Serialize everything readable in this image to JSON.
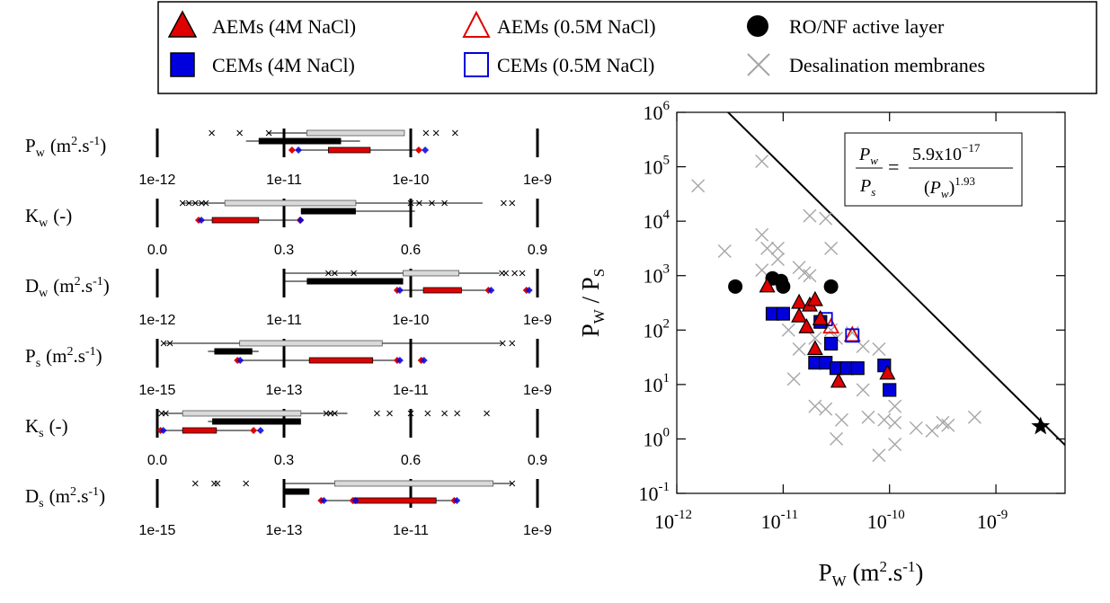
{
  "legend": {
    "items": [
      {
        "label": "AEMs (4M NaCl)",
        "marker": "triangle-filled"
      },
      {
        "label": "AEMs (0.5M NaCl)",
        "marker": "triangle-open"
      },
      {
        "label": "RO/NF active layer",
        "marker": "circle-filled"
      },
      {
        "label": "CEMs (4M NaCl)",
        "marker": "square-filled"
      },
      {
        "label": "CEMs (0.5M NaCl)",
        "marker": "square-open"
      },
      {
        "label": "Desalination membranes",
        "marker": "cross"
      }
    ]
  },
  "colors": {
    "aem": "#e00000",
    "cem": "#0000dd",
    "desal": "#a6a6a6",
    "ro": "#000000",
    "box_grey": "#d9d9d9",
    "box_black": "#000000",
    "box_red": "#e00000"
  },
  "chart_data": [
    {
      "type": "boxplot",
      "rows": [
        {
          "label": "Pw (m2.s-1)",
          "sym": "P",
          "sub": "w",
          "unit_pre": "(m",
          "unit_sup1": "2",
          "unit_mid": ".s",
          "unit_sup2": "-1",
          "unit_post": ")",
          "scale": "log",
          "ticks": [
            "1e-12",
            "1e-11",
            "1e-10",
            "1e-9"
          ],
          "range": [
            -12,
            -9
          ],
          "desal_box": {
            "whisker": [
              -11.13,
              -10.2
            ],
            "box": [
              -10.82,
              -10.05
            ]
          },
          "desal_outliers": [
            -11.57,
            -11.35,
            -11.12,
            -9.88,
            -9.8,
            -9.65
          ],
          "ro_box": {
            "whisker": [
              -11.3,
              -10.4
            ],
            "box": [
              -11.2,
              -10.55
            ]
          },
          "ro_end": [
            -11.06
          ],
          "mem_box": {
            "whisker": [
              -10.93,
              -9.93
            ],
            "box": [
              -10.65,
              -10.32
            ]
          },
          "aem_dots": [
            -10.93,
            -9.93
          ],
          "cem_dots": [
            -10.9,
            -9.9
          ]
        },
        {
          "label": "Kw (-)",
          "sym": "K",
          "sub": "w",
          "unit_pre": "(-)",
          "unit_sup1": "",
          "unit_mid": "",
          "unit_sup2": "",
          "unit_post": "",
          "scale": "linear",
          "ticks": [
            "0.0",
            "0.3",
            "0.6",
            "0.9"
          ],
          "range": [
            0,
            0.9
          ],
          "desal_box": {
            "whisker": [
              0.06,
              0.77
            ],
            "box": [
              0.16,
              0.47
            ]
          },
          "desal_outliers": [
            0.06,
            0.075,
            0.09,
            0.105,
            0.115,
            0.6,
            0.62,
            0.65,
            0.68,
            0.82,
            0.84
          ],
          "ro_box": {
            "whisker": [
              0.34,
              0.61
            ],
            "box": [
              0.34,
              0.47
            ]
          },
          "ro_end": [],
          "mem_box": {
            "whisker": [
              0.1,
              0.34
            ],
            "box": [
              0.13,
              0.24
            ]
          },
          "aem_dots": [
            0.1,
            0.34
          ],
          "cem_dots": [
            0.1,
            0.335
          ]
        },
        {
          "label": "Dw (m2.s-1)",
          "sym": "D",
          "sub": "w",
          "unit_pre": "(m",
          "unit_sup1": "2",
          "unit_mid": ".s",
          "unit_sup2": "-1",
          "unit_post": ")",
          "scale": "log",
          "ticks": [
            "1e-12",
            "1e-11",
            "1e-10",
            "1e-9"
          ],
          "range": [
            -12,
            -9
          ],
          "desal_box": {
            "whisker": [
              -11,
              -9.3
            ],
            "box": [
              -10.06,
              -9.62
            ]
          },
          "desal_outliers": [
            -10.65,
            -10.6,
            -10.45,
            -9.28,
            -9.25,
            -9.18,
            -9.12
          ],
          "ro_box": {
            "whisker": [
              -11,
              -10.06
            ],
            "box": [
              -10.82,
              -10.06
            ]
          },
          "ro_end": [],
          "mem_box": {
            "whisker": [
              -10.1,
              -9.38
            ],
            "box": [
              -9.9,
              -9.6
            ]
          },
          "aem_dots": [
            -10.1,
            -9.38,
            -9.08
          ],
          "cem_dots": [
            -10.1,
            -9.38,
            -9.08
          ]
        },
        {
          "label": "Ps (m2.s-1)",
          "sym": "P",
          "sub": "s",
          "unit_pre": "(m",
          "unit_sup1": "2",
          "unit_mid": ".s",
          "unit_sup2": "-1",
          "unit_post": ")",
          "scale": "log",
          "ticks": [
            "1e-15",
            "1e-13",
            "1e-11",
            "1e-9"
          ],
          "range": [
            -15,
            -9
          ],
          "desal_box": {
            "whisker": [
              -14.9,
              -9.55
            ],
            "box": [
              -13.7,
              -11.45
            ]
          },
          "desal_outliers": [
            -14.9,
            -14.8,
            -9.55,
            -9.4
          ],
          "ro_box": {
            "whisker": [
              -14.2,
              -13.4
            ],
            "box": [
              -14.1,
              -13.5
            ]
          },
          "ro_end": [],
          "mem_box": {
            "whisker": [
              -13.72,
              -11.2
            ],
            "box": [
              -12.6,
              -11.6
            ]
          },
          "aem_dots": [
            -13.72,
            -11.2,
            -10.82
          ],
          "cem_dots": [
            -13.72,
            -11.2,
            -10.82
          ]
        },
        {
          "label": "Ks (-)",
          "sym": "K",
          "sub": "s",
          "unit_pre": "(-)",
          "unit_sup1": "",
          "unit_mid": "",
          "unit_sup2": "",
          "unit_post": "",
          "scale": "linear",
          "ticks": [
            "0.0",
            "0.3",
            "0.6",
            "0.9"
          ],
          "range": [
            0,
            0.9
          ],
          "desal_box": {
            "whisker": [
              0.01,
              0.45
            ],
            "box": [
              0.06,
              0.34
            ]
          },
          "desal_outliers": [
            0.01,
            0.02,
            0.4,
            0.41,
            0.42,
            0.52,
            0.55,
            0.6,
            0.64,
            0.68,
            0.71,
            0.78
          ],
          "ro_box": {
            "whisker": [
              0.12,
              0.34
            ],
            "box": [
              0.13,
              0.34
            ]
          },
          "ro_end": [],
          "mem_box": {
            "whisker": [
              0.01,
              0.24
            ],
            "box": [
              0.06,
              0.14
            ]
          },
          "aem_dots": [
            0.01,
            0.23
          ],
          "cem_dots": [
            0.01,
            0.24
          ]
        },
        {
          "label": "Ds (m2.s-1)",
          "sym": "D",
          "sub": "s",
          "unit_pre": "(m",
          "unit_sup1": "2",
          "unit_mid": ".s",
          "unit_sup2": "-1",
          "unit_post": ")",
          "scale": "log",
          "ticks": [
            "1e-15",
            "1e-13",
            "1e-11",
            "1e-9"
          ],
          "range": [
            -15,
            -9
          ],
          "desal_box": {
            "whisker": [
              -13,
              -9.4
            ],
            "box": [
              -12.2,
              -9.7
            ]
          },
          "desal_outliers": [
            -14.4,
            -14.1,
            -14.05,
            -13.6,
            -9.4
          ],
          "ro_box": {
            "whisker": [
              -13,
              -12.6
            ],
            "box": [
              -13,
              -12.6
            ]
          },
          "ro_end": [],
          "mem_box": {
            "whisker": [
              -12.4,
              -10.3
            ],
            "box": [
              -11.9,
              -10.6
            ]
          },
          "aem_dots": [
            -12.4,
            -11.9,
            -10.3
          ],
          "cem_dots": [
            -12.4,
            -11.9,
            -10.3
          ]
        }
      ]
    },
    {
      "type": "scatter",
      "xlabel": "Pw (m2.s-1)",
      "ylabel": "Pw / Ps",
      "x_scale": "log",
      "y_scale": "log",
      "xlim": [
        -12,
        -8.35
      ],
      "ylim": [
        -1,
        6
      ],
      "x_ticks": [
        {
          "val": -12,
          "base": "10",
          "exp": "-12"
        },
        {
          "val": -11,
          "base": "10",
          "exp": "-11"
        },
        {
          "val": -10,
          "base": "10",
          "exp": "-10"
        },
        {
          "val": -9,
          "base": "10",
          "exp": "-9"
        }
      ],
      "y_ticks": [
        {
          "val": -1,
          "base": "10",
          "exp": "-1"
        },
        {
          "val": 0,
          "base": "10",
          "exp": "0"
        },
        {
          "val": 1,
          "base": "10",
          "exp": "1"
        },
        {
          "val": 2,
          "base": "10",
          "exp": "2"
        },
        {
          "val": 3,
          "base": "10",
          "exp": "3"
        },
        {
          "val": 4,
          "base": "10",
          "exp": "4"
        },
        {
          "val": 5,
          "base": "10",
          "exp": "5"
        },
        {
          "val": 6,
          "base": "10",
          "exp": "6"
        }
      ],
      "upper_bound": {
        "prefactor": 5.9e-17,
        "exponent": 1.93,
        "equation_num": "5.9x10",
        "equation_num_exp": "−17",
        "equation_den_exp": "1.93"
      },
      "star": {
        "x": -8.58,
        "y": 0.23
      },
      "series": [
        {
          "name": "RO/NF active layer",
          "points": [
            [
              -11.45,
              2.8
            ],
            [
              -11.1,
              2.95
            ],
            [
              -11.02,
              2.9
            ],
            [
              -11.0,
              2.8
            ],
            [
              -10.55,
              2.8
            ]
          ]
        },
        {
          "name": "AEMs (4M NaCl)",
          "points": [
            [
              -11.15,
              2.8
            ],
            [
              -10.85,
              2.5
            ],
            [
              -10.75,
              2.45
            ],
            [
              -10.85,
              2.25
            ],
            [
              -10.7,
              2.55
            ],
            [
              -10.65,
              2.2
            ],
            [
              -10.78,
              2.05
            ],
            [
              -10.7,
              1.65
            ],
            [
              -10.48,
              1.05
            ],
            [
              -10.02,
              1.2
            ]
          ]
        },
        {
          "name": "AEMs (0.5M NaCl)",
          "points": [
            [
              -10.55,
              2.05
            ],
            [
              -10.35,
              1.9
            ]
          ]
        },
        {
          "name": "CEMs (4M NaCl)",
          "points": [
            [
              -11.1,
              2.3
            ],
            [
              -11.0,
              2.3
            ],
            [
              -10.65,
              2.15
            ],
            [
              -10.55,
              1.75
            ],
            [
              -10.7,
              1.4
            ],
            [
              -10.6,
              1.4
            ],
            [
              -10.5,
              1.3
            ],
            [
              -10.4,
              1.3
            ],
            [
              -10.3,
              1.3
            ],
            [
              -10.05,
              1.35
            ],
            [
              -10.0,
              0.9
            ]
          ]
        },
        {
          "name": "CEMs (0.5M NaCl)",
          "points": [
            [
              -10.6,
              2.2
            ],
            [
              -10.35,
              1.9
            ]
          ]
        },
        {
          "name": "Desalination membranes",
          "points": [
            [
              -11.8,
              4.65
            ],
            [
              -11.2,
              5.1
            ],
            [
              -11.55,
              3.45
            ],
            [
              -11.2,
              3.75
            ],
            [
              -11.15,
              3.5
            ],
            [
              -11.05,
              3.5
            ],
            [
              -11.05,
              3.3
            ],
            [
              -11.2,
              3.1
            ],
            [
              -10.85,
              3.15
            ],
            [
              -10.8,
              3.05
            ],
            [
              -10.75,
              3.0
            ],
            [
              -10.75,
              4.1
            ],
            [
              -10.6,
              4.05
            ],
            [
              -10.55,
              3.5
            ],
            [
              -11.05,
              2.3
            ],
            [
              -10.95,
              2.0
            ],
            [
              -10.85,
              1.65
            ],
            [
              -10.7,
              1.85
            ],
            [
              -10.55,
              2.0
            ],
            [
              -10.5,
              1.85
            ],
            [
              -10.35,
              1.95
            ],
            [
              -10.25,
              1.7
            ],
            [
              -10.1,
              1.65
            ],
            [
              -10.9,
              1.1
            ],
            [
              -10.7,
              0.6
            ],
            [
              -10.6,
              0.55
            ],
            [
              -10.5,
              0.0
            ],
            [
              -10.45,
              0.35
            ],
            [
              -10.25,
              0.9
            ],
            [
              -10.2,
              0.4
            ],
            [
              -10.1,
              -0.3
            ],
            [
              -10.05,
              0.35
            ],
            [
              -9.95,
              -0.1
            ],
            [
              -9.95,
              0.6
            ],
            [
              -9.95,
              0.3
            ],
            [
              -9.75,
              0.2
            ],
            [
              -9.6,
              0.15
            ],
            [
              -9.5,
              0.3
            ],
            [
              -9.45,
              0.25
            ],
            [
              -9.2,
              0.4
            ]
          ]
        }
      ]
    }
  ]
}
